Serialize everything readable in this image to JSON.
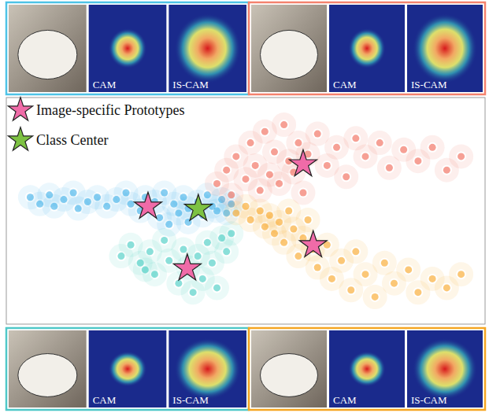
{
  "panels": [
    {
      "position": "top-left",
      "color": "#4ec3e6",
      "labels": [
        "CAM",
        "IS-CAM"
      ]
    },
    {
      "position": "top-right",
      "color": "#f4826e",
      "labels": [
        "CAM",
        "IS-CAM"
      ]
    },
    {
      "position": "bottom-left",
      "color": "#4fc8c8",
      "labels": [
        "CAM",
        "IS-CAM"
      ]
    },
    {
      "position": "bottom-right",
      "color": "#f5a623",
      "labels": [
        "CAM",
        "IS-CAM"
      ]
    }
  ],
  "chart_data": {
    "type": "scatter",
    "legend": "upper left",
    "tick_labels": false,
    "xlim": [
      0,
      100
    ],
    "ylim": [
      0,
      100
    ],
    "series": [
      {
        "color": "#38aee8",
        "marker": "circle",
        "x": [
          5,
          7,
          9,
          10,
          12,
          14,
          15,
          17,
          19,
          21,
          23,
          25,
          26,
          28,
          29,
          31,
          32,
          33,
          35,
          36,
          37,
          38,
          40,
          41,
          42,
          43,
          44,
          45,
          46,
          47,
          34,
          38
        ],
        "y": [
          56,
          53,
          57,
          52,
          55,
          58,
          51,
          54,
          56,
          52,
          55,
          58,
          53,
          50,
          56,
          54,
          47,
          58,
          53,
          49,
          56,
          51,
          54,
          48,
          57,
          52,
          50,
          55,
          49,
          53,
          44,
          45
        ]
      },
      {
        "color": "#f0604e",
        "marker": "circle",
        "x": [
          44,
          46,
          47,
          48,
          50,
          51,
          52,
          53,
          54,
          55,
          56,
          57,
          58,
          59,
          60,
          61,
          62,
          63,
          65,
          67,
          69,
          71,
          73,
          75,
          78,
          80,
          83,
          86,
          89,
          92,
          95
        ],
        "y": [
          62,
          68,
          57,
          74,
          64,
          80,
          70,
          59,
          85,
          66,
          76,
          62,
          88,
          72,
          67,
          80,
          58,
          75,
          84,
          70,
          78,
          65,
          82,
          74,
          80,
          69,
          77,
          72,
          78,
          68,
          74
        ]
      },
      {
        "color": "#3ccabf",
        "marker": "circle",
        "x": [
          24,
          26,
          28,
          30,
          31,
          33,
          34,
          36,
          37,
          38,
          40,
          41,
          42,
          43,
          45,
          46,
          47,
          44,
          39,
          29
        ],
        "y": [
          30,
          35,
          27,
          32,
          22,
          37,
          28,
          18,
          33,
          25,
          30,
          20,
          36,
          27,
          38,
          32,
          40,
          16,
          14,
          24
        ]
      },
      {
        "color": "#f8a21c",
        "marker": "circle",
        "x": [
          48,
          50,
          51,
          53,
          54,
          55,
          56,
          57,
          58,
          60,
          61,
          62,
          64,
          65,
          67,
          68,
          70,
          72,
          73,
          75,
          77,
          79,
          81,
          84,
          86,
          89,
          92,
          95,
          63,
          59
        ],
        "y": [
          49,
          52,
          46,
          50,
          43,
          48,
          40,
          45,
          36,
          42,
          30,
          38,
          33,
          25,
          35,
          20,
          28,
          15,
          32,
          22,
          12,
          27,
          18,
          24,
          14,
          20,
          16,
          22,
          46,
          50
        ]
      },
      {
        "name": "Image-specific Prototypes",
        "color": "#f06ba8",
        "marker": "star",
        "x": [
          62.0,
          29.6,
          37.8,
          64.1
        ],
        "y": [
          70.6,
          51.9,
          24.6,
          34.9
        ]
      },
      {
        "name": "Class Center",
        "color": "#7dc242",
        "marker": "star",
        "x": [
          40.1
        ],
        "y": [
          50.9
        ]
      }
    ]
  }
}
